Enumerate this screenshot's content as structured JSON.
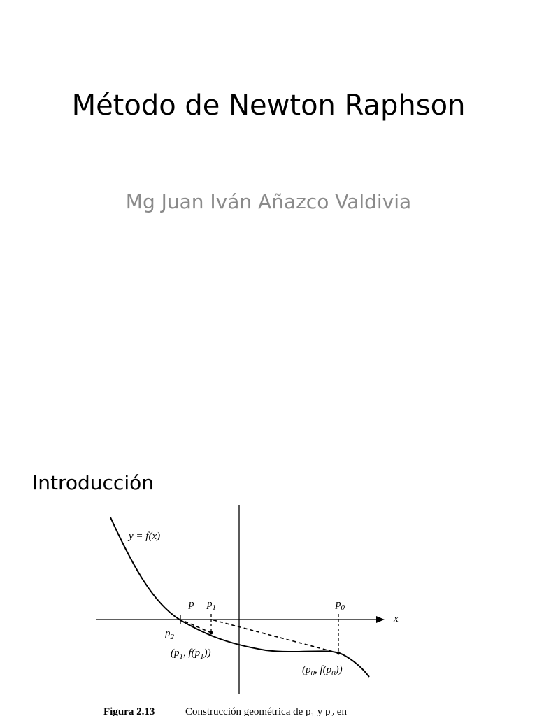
{
  "title": "Método de Newton Raphson",
  "subtitle": "Mg Juan Iván Añazco Valdivia",
  "section": "Introducción",
  "figure": {
    "labels": {
      "curve": [
        "y = f(x)"
      ],
      "p": [
        "p"
      ],
      "p1": [
        "p",
        "1"
      ],
      "p0": [
        "p",
        "0"
      ],
      "x": [
        "x"
      ],
      "p2": [
        "p",
        "2"
      ],
      "point1": [
        "(p",
        "1",
        ", f(p",
        "1",
        "))"
      ],
      "point0": [
        "(p",
        "0",
        ", f(p",
        "0",
        "))"
      ]
    },
    "caption_number": "Figura 2.13",
    "caption_text": [
      "Construcción geométrica de p",
      "1",
      " y p",
      "2",
      " en"
    ]
  }
}
